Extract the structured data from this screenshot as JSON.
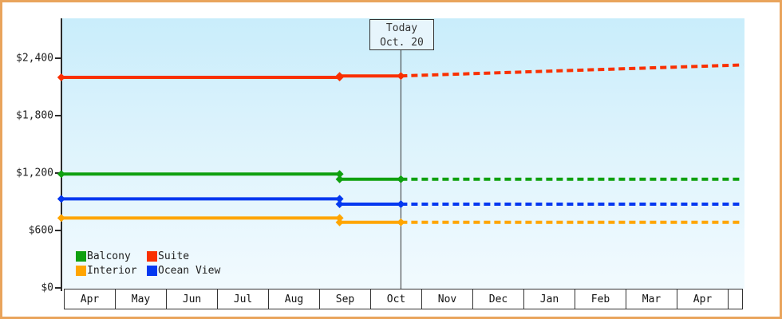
{
  "frame": {
    "border_color": "#e9a45c"
  },
  "today_marker": {
    "line1": "Today",
    "line2": "Oct. 20"
  },
  "y_axis": {
    "tick_labels": [
      "$0",
      "$600",
      "$1,200",
      "$1,800",
      "$2,400"
    ],
    "tick_values": [
      0,
      600,
      1200,
      1800,
      2400
    ]
  },
  "x_axis": {
    "months": [
      "Apr",
      "May",
      "Jun",
      "Jul",
      "Aug",
      "Sep",
      "Oct",
      "Nov",
      "Dec",
      "Jan",
      "Feb",
      "Mar",
      "Apr"
    ]
  },
  "legend": {
    "order": [
      "Balcony",
      "Suite",
      "Interior",
      "Ocean View"
    ]
  },
  "chart_data": {
    "type": "line",
    "x_categories": [
      "Apr",
      "May",
      "Jun",
      "Jul",
      "Aug",
      "Sep",
      "Oct",
      "Nov",
      "Dec",
      "Jan",
      "Feb",
      "Mar",
      "Apr"
    ],
    "yticks": [
      0,
      600,
      1200,
      1800,
      2400
    ],
    "ylim": [
      0,
      2820
    ],
    "today_label": "Today Oct. 20",
    "x_start_month_offset": -0.05,
    "price_change_month_offset": 5.4,
    "today_month_offset": 6.6,
    "x_end_month_offset": 13.3,
    "series": [
      {
        "name": "Suite",
        "color": "#f93000",
        "price_start": 2200,
        "price_after_change": 2215,
        "price_forecast_end": 2330
      },
      {
        "name": "Balcony",
        "color": "#0fa00f",
        "price_start": 1190,
        "price_after_change": 1135,
        "price_forecast_end": 1135
      },
      {
        "name": "Ocean View",
        "color": "#0438f0",
        "price_start": 930,
        "price_after_change": 875,
        "price_forecast_end": 875
      },
      {
        "name": "Interior",
        "color": "#ffa500",
        "price_start": 730,
        "price_after_change": 685,
        "price_forecast_end": 685
      }
    ],
    "legend_position": "bottom-left-inside",
    "grid": false
  }
}
